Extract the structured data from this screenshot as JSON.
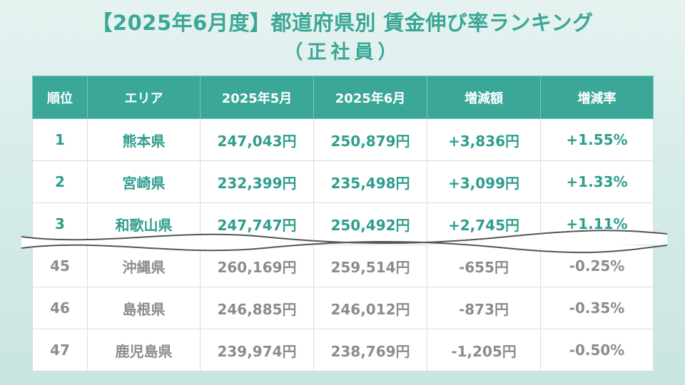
{
  "title": {
    "line1": "【2025年6月度】都道府県別 賃金伸び率ランキング",
    "line2": "（正社員）"
  },
  "table": {
    "headers": [
      "順位",
      "エリア",
      "2025年5月",
      "2025年6月",
      "増減額",
      "増減率"
    ],
    "top_rows": [
      {
        "rank": "1",
        "area": "熊本県",
        "may": "247,043円",
        "jun": "250,879円",
        "diff": "+3,836円",
        "rate": "+1.55%"
      },
      {
        "rank": "2",
        "area": "宮崎県",
        "may": "232,399円",
        "jun": "235,498円",
        "diff": "+3,099円",
        "rate": "+1.33%"
      },
      {
        "rank": "3",
        "area": "和歌山県",
        "may": "247,747円",
        "jun": "250,492円",
        "diff": "+2,745円",
        "rate": "+1.11%"
      }
    ],
    "bottom_rows": [
      {
        "rank": "45",
        "area": "沖縄県",
        "may": "260,169円",
        "jun": "259,514円",
        "diff": "-655円",
        "rate": "-0.25%"
      },
      {
        "rank": "46",
        "area": "島根県",
        "may": "246,885円",
        "jun": "246,012円",
        "diff": "-873円",
        "rate": "-0.35%"
      },
      {
        "rank": "47",
        "area": "鹿児島県",
        "may": "239,974円",
        "jun": "238,769円",
        "diff": "-1,205円",
        "rate": "-0.50%"
      }
    ]
  },
  "colors": {
    "accent": "#3aa797",
    "top_text": "#2f9e8e",
    "bottom_text": "#8c8c8c",
    "background": "#d6ece8"
  }
}
